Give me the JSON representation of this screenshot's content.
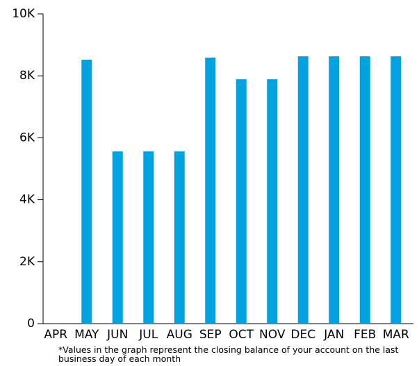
{
  "chart_data": {
    "type": "bar",
    "categories": [
      "APR",
      "MAY",
      "JUN",
      "JUL",
      "AUG",
      "SEP",
      "OCT",
      "NOV",
      "DEC",
      "JAN",
      "FEB",
      "MAR"
    ],
    "values": [
      20,
      8520,
      5560,
      5560,
      5560,
      8590,
      7890,
      7890,
      8630,
      8630,
      8630,
      8630
    ],
    "color": "#00a3e0",
    "ylim": [
      0,
      10000
    ],
    "yticks": [
      0,
      {
        "value": 2000,
        "label": "2K"
      },
      {
        "value": 4000,
        "label": "4K"
      },
      {
        "value": 6000,
        "label": "6K"
      },
      {
        "value": 8000,
        "label": "8K"
      },
      {
        "value": 10000,
        "label": "10K"
      }
    ],
    "footnote": "*Values in the graph represent the closing balance of your account on the last business day of each month"
  }
}
